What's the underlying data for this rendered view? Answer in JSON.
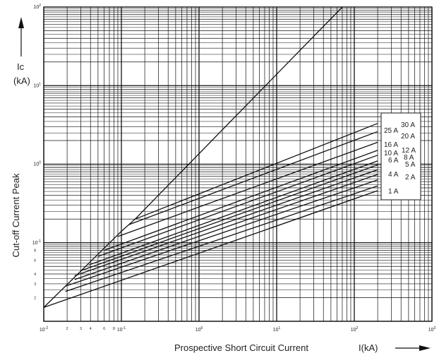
{
  "chart_data": {
    "type": "line",
    "title": "",
    "xlabel": "Prospective Short Circuit Current",
    "x_unit_label": "I(kA)",
    "ylabel": "Cut-off Current Peak",
    "y_unit_label_top": "Ic",
    "y_unit_label_bottom": "(kA)",
    "x_scale": "log",
    "y_scale": "log",
    "xlim": [
      0.01,
      1000
    ],
    "ylim": [
      0.01,
      100
    ],
    "grid": true,
    "legend_position": "right",
    "x_major_ticks": [
      {
        "value": 0.01,
        "mantissa": "10",
        "exponent": "-2"
      },
      {
        "value": 0.1,
        "mantissa": "10",
        "exponent": "-1"
      },
      {
        "value": 1,
        "mantissa": "10",
        "exponent": "0"
      },
      {
        "value": 10,
        "mantissa": "10",
        "exponent": "1"
      },
      {
        "value": 100,
        "mantissa": "10",
        "exponent": "2"
      },
      {
        "value": 1000,
        "mantissa": "10",
        "exponent": "3"
      }
    ],
    "x_minor_ticks": [
      {
        "value": 0.02,
        "label": "2"
      },
      {
        "value": 0.03,
        "label": "3"
      },
      {
        "value": 0.04,
        "label": "4"
      },
      {
        "value": 0.06,
        "label": "6"
      },
      {
        "value": 0.08,
        "label": "8"
      }
    ],
    "y_major_ticks": [
      {
        "value": 0.1,
        "mantissa": "10",
        "exponent": "-1"
      },
      {
        "value": 1,
        "mantissa": "10",
        "exponent": "0"
      },
      {
        "value": 10,
        "mantissa": "10",
        "exponent": "1"
      },
      {
        "value": 100,
        "mantissa": "10",
        "exponent": "2"
      }
    ],
    "y_minor_ticks": [
      {
        "value": 0.02,
        "label": "2"
      },
      {
        "value": 0.03,
        "label": "3"
      },
      {
        "value": 0.04,
        "label": "4"
      },
      {
        "value": 0.06,
        "label": "6"
      },
      {
        "value": 0.08,
        "label": "8"
      }
    ],
    "envelope": {
      "x": [
        0.01,
        0.1,
        0.15,
        70
      ],
      "y": [
        0.015,
        0.14,
        0.2,
        100
      ]
    },
    "series": [
      {
        "name": "30 A",
        "x": [
          0.15,
          200
        ],
        "y": [
          0.2,
          3.3
        ]
      },
      {
        "name": "25 A",
        "x": [
          0.125,
          200
        ],
        "y": [
          0.17,
          2.6
        ]
      },
      {
        "name": "20 A",
        "x": [
          0.09,
          200
        ],
        "y": [
          0.12,
          1.9
        ]
      },
      {
        "name": "16 A",
        "x": [
          0.06,
          200
        ],
        "y": [
          0.08,
          1.5
        ]
      },
      {
        "name": "12 A",
        "x": [
          0.05,
          200
        ],
        "y": [
          0.067,
          1.3
        ]
      },
      {
        "name": "10 A",
        "x": [
          0.038,
          200
        ],
        "y": [
          0.052,
          1.1
        ]
      },
      {
        "name": "8 A",
        "x": [
          0.03,
          200
        ],
        "y": [
          0.044,
          0.98
        ]
      },
      {
        "name": "6 A",
        "x": [
          0.025,
          200
        ],
        "y": [
          0.038,
          0.85
        ]
      },
      {
        "name": "5 A",
        "x": [
          0.025,
          200
        ],
        "y": [
          0.034,
          0.74
        ]
      },
      {
        "name": "4 A",
        "x": [
          0.019,
          200
        ],
        "y": [
          0.028,
          0.63
        ]
      },
      {
        "name": "2 A",
        "x": [
          0.019,
          200
        ],
        "y": [
          0.024,
          0.53
        ]
      },
      {
        "name": "1 A",
        "x": [
          0.01,
          200
        ],
        "y": [
          0.015,
          0.46
        ]
      }
    ]
  }
}
